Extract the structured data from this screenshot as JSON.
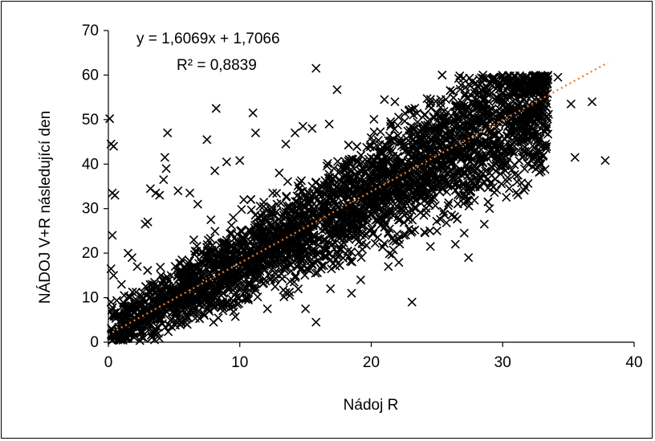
{
  "chart_data": {
    "type": "scatter",
    "title": "",
    "xlabel": "Nádoj R",
    "ylabel": "NÁDOJ V+R následující den",
    "xlim": [
      0,
      40
    ],
    "ylim": [
      0,
      70
    ],
    "x_ticks": [
      "0",
      "10",
      "20",
      "30",
      "40"
    ],
    "y_ticks": [
      "0",
      "10",
      "20",
      "30",
      "40",
      "50",
      "60",
      "70"
    ],
    "grid": false,
    "legend": "none",
    "marker": "x",
    "marker_color": "#000000",
    "trendline": {
      "slope": 1.6069,
      "intercept": 1.7066,
      "x_range": [
        0,
        38
      ],
      "color": "#ED7D31",
      "style": "dotted"
    },
    "annotations": [
      "y = 1,6069x + 1,7066",
      "R² = 0,8839"
    ],
    "points": [
      [
        0.1,
        50.2
      ],
      [
        0.2,
        44.5
      ],
      [
        0.4,
        44.0
      ],
      [
        0.3,
        33.5
      ],
      [
        0.5,
        33.0
      ],
      [
        0.3,
        24.0
      ],
      [
        0.2,
        16.5
      ],
      [
        0.4,
        15.0
      ],
      [
        0.2,
        9.0
      ],
      [
        0.3,
        6.0
      ],
      [
        1.0,
        13.0
      ],
      [
        1.2,
        10.5
      ],
      [
        1.5,
        20.0
      ],
      [
        1.8,
        19.0
      ],
      [
        2.2,
        17.0
      ],
      [
        2.8,
        26.5
      ],
      [
        3.0,
        27.0
      ],
      [
        3.2,
        34.5
      ],
      [
        3.6,
        33.5
      ],
      [
        3.9,
        33.0
      ],
      [
        4.5,
        47.0
      ],
      [
        4.3,
        41.5
      ],
      [
        4.4,
        39.0
      ],
      [
        4.2,
        36.5
      ],
      [
        5.3,
        34.0
      ],
      [
        6.2,
        33.5
      ],
      [
        6.8,
        31.0
      ],
      [
        7.5,
        45.5
      ],
      [
        8.2,
        52.5
      ],
      [
        8.1,
        38.5
      ],
      [
        9.0,
        40.5
      ],
      [
        10.0,
        40.8
      ],
      [
        11.0,
        51.5
      ],
      [
        11.2,
        47.0
      ],
      [
        13.5,
        44.5
      ],
      [
        14.2,
        47.0
      ],
      [
        14.8,
        48.5
      ],
      [
        15.5,
        48.0
      ],
      [
        15.8,
        61.5
      ],
      [
        17.4,
        56.7
      ],
      [
        16.8,
        49.0
      ],
      [
        21.0,
        54.5
      ],
      [
        21.8,
        54.0
      ],
      [
        28.5,
        60.0
      ],
      [
        33.0,
        58.0
      ],
      [
        34.2,
        59.5
      ],
      [
        35.2,
        53.5
      ],
      [
        35.5,
        41.5
      ],
      [
        36.8,
        54.0
      ],
      [
        37.8,
        40.8
      ],
      [
        33.1,
        42.0
      ],
      [
        32.8,
        39.5
      ],
      [
        30.5,
        34.5
      ],
      [
        29.0,
        30.0
      ],
      [
        28.6,
        26.5
      ],
      [
        27.4,
        19.0
      ],
      [
        24.5,
        21.5
      ],
      [
        23.1,
        9.0
      ],
      [
        21.3,
        17.0
      ],
      [
        19.2,
        14.0
      ],
      [
        18.5,
        11.0
      ],
      [
        16.9,
        12.0
      ],
      [
        15.8,
        4.5
      ],
      [
        15.0,
        7.5
      ],
      [
        13.8,
        10.5
      ],
      [
        12.1,
        7.5
      ],
      [
        10.5,
        10.0
      ],
      [
        9.8,
        8.5
      ],
      [
        8.0,
        4.5
      ],
      [
        7.3,
        6.0
      ],
      [
        6.0,
        4.0
      ],
      [
        4.8,
        3.5
      ],
      [
        3.6,
        2.5
      ],
      [
        2.5,
        2.0
      ],
      [
        1.6,
        2.3
      ],
      [
        0.8,
        0.8
      ],
      [
        18.9,
        27.0
      ],
      [
        19.8,
        30.5
      ],
      [
        22.6,
        33.5
      ],
      [
        25.6,
        36.8
      ],
      [
        26.4,
        22.0
      ],
      [
        25.0,
        25.0
      ],
      [
        24.0,
        28.5
      ],
      [
        30.2,
        49.0
      ],
      [
        31.5,
        45.0
      ],
      [
        32.0,
        51.5
      ],
      [
        29.5,
        41.0
      ],
      [
        27.0,
        46.5
      ],
      [
        12.5,
        33.5
      ],
      [
        11.8,
        30.5
      ],
      [
        10.3,
        32.0
      ],
      [
        13.0,
        38.0
      ],
      [
        9.5,
        28.0
      ],
      [
        7.8,
        27.5
      ],
      [
        6.5,
        23.0
      ],
      [
        8.8,
        22.5
      ],
      [
        5.6,
        18.5
      ],
      [
        4.0,
        15.0
      ]
    ]
  }
}
